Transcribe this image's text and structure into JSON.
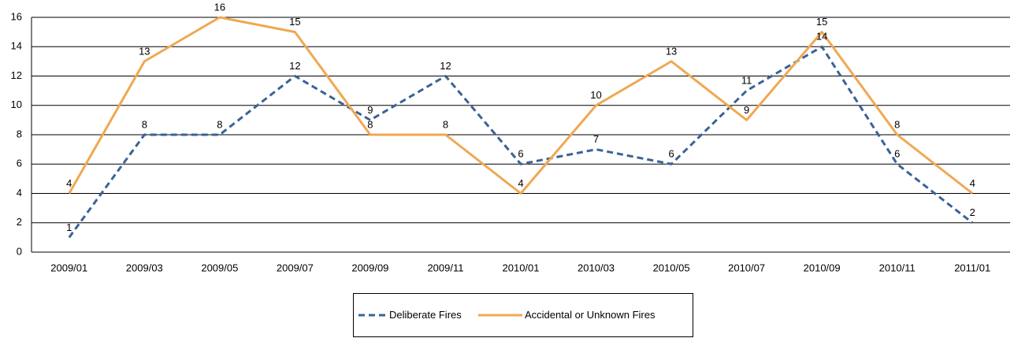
{
  "chart_data": {
    "type": "line",
    "categories": [
      "2009/01",
      "2009/03",
      "2009/05",
      "2009/07",
      "2009/09",
      "2009/11",
      "2010/01",
      "2010/03",
      "2010/05",
      "2010/07",
      "2010/09",
      "2010/11",
      "2011/01"
    ],
    "series": [
      {
        "name": "Deliberate Fires",
        "color": "#3a6396",
        "dashed": true,
        "values": [
          1,
          8,
          8,
          12,
          9,
          12,
          6,
          7,
          6,
          11,
          14,
          6,
          2
        ]
      },
      {
        "name": "Accidental or Unknown Fires",
        "color": "#f0a852",
        "dashed": false,
        "values": [
          4,
          13,
          16,
          15,
          8,
          8,
          4,
          10,
          13,
          9,
          15,
          8,
          4
        ]
      }
    ],
    "ylim": [
      0,
      16
    ],
    "yticks": [
      0,
      2,
      4,
      6,
      8,
      10,
      12,
      14,
      16
    ],
    "grid": true,
    "legend": "bottom"
  }
}
